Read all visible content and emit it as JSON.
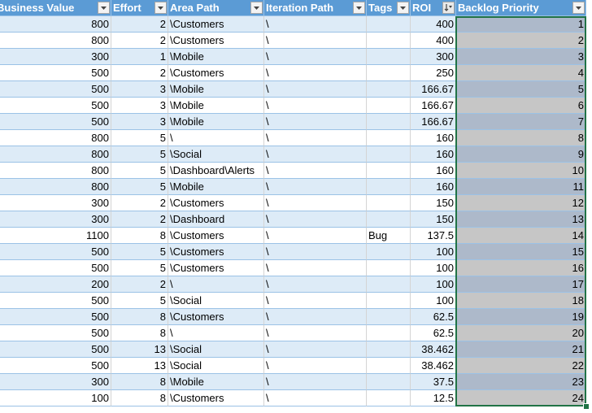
{
  "columns": [
    {
      "id": "business_value",
      "label": "Business Value",
      "align": "num"
    },
    {
      "id": "effort",
      "label": "Effort",
      "align": "num"
    },
    {
      "id": "area_path",
      "label": "Area Path",
      "align": "txt"
    },
    {
      "id": "iteration_path",
      "label": "Iteration Path",
      "align": "txt"
    },
    {
      "id": "tags",
      "label": "Tags",
      "align": "txt"
    },
    {
      "id": "roi",
      "label": "ROI",
      "align": "num",
      "sorted": "descending"
    },
    {
      "id": "backlog_priority",
      "label": "Backlog Priority",
      "align": "num",
      "selected": true
    }
  ],
  "rows": [
    {
      "business_value": "800",
      "effort": "2",
      "area_path": "\\Customers",
      "iteration_path": "\\",
      "tags": "",
      "roi": "400",
      "backlog_priority": "1"
    },
    {
      "business_value": "800",
      "effort": "2",
      "area_path": "\\Customers",
      "iteration_path": "\\",
      "tags": "",
      "roi": "400",
      "backlog_priority": "2"
    },
    {
      "business_value": "300",
      "effort": "1",
      "area_path": "\\Mobile",
      "iteration_path": "\\",
      "tags": "",
      "roi": "300",
      "backlog_priority": "3"
    },
    {
      "business_value": "500",
      "effort": "2",
      "area_path": "\\Customers",
      "iteration_path": "\\",
      "tags": "",
      "roi": "250",
      "backlog_priority": "4"
    },
    {
      "business_value": "500",
      "effort": "3",
      "area_path": "\\Mobile",
      "iteration_path": "\\",
      "tags": "",
      "roi": "166.67",
      "backlog_priority": "5"
    },
    {
      "business_value": "500",
      "effort": "3",
      "area_path": "\\Mobile",
      "iteration_path": "\\",
      "tags": "",
      "roi": "166.67",
      "backlog_priority": "6"
    },
    {
      "business_value": "500",
      "effort": "3",
      "area_path": "\\Mobile",
      "iteration_path": "\\",
      "tags": "",
      "roi": "166.67",
      "backlog_priority": "7"
    },
    {
      "business_value": "800",
      "effort": "5",
      "area_path": "\\",
      "iteration_path": "\\",
      "tags": "",
      "roi": "160",
      "backlog_priority": "8"
    },
    {
      "business_value": "800",
      "effort": "5",
      "area_path": "\\Social",
      "iteration_path": "\\",
      "tags": "",
      "roi": "160",
      "backlog_priority": "9"
    },
    {
      "business_value": "800",
      "effort": "5",
      "area_path": "\\Dashboard\\Alerts",
      "iteration_path": "\\",
      "tags": "",
      "roi": "160",
      "backlog_priority": "10"
    },
    {
      "business_value": "800",
      "effort": "5",
      "area_path": "\\Mobile",
      "iteration_path": "\\",
      "tags": "",
      "roi": "160",
      "backlog_priority": "11"
    },
    {
      "business_value": "300",
      "effort": "2",
      "area_path": "\\Customers",
      "iteration_path": "\\",
      "tags": "",
      "roi": "150",
      "backlog_priority": "12"
    },
    {
      "business_value": "300",
      "effort": "2",
      "area_path": "\\Dashboard",
      "iteration_path": "\\",
      "tags": "",
      "roi": "150",
      "backlog_priority": "13"
    },
    {
      "business_value": "1100",
      "effort": "8",
      "area_path": "\\Customers",
      "iteration_path": "\\",
      "tags": "Bug",
      "roi": "137.5",
      "backlog_priority": "14"
    },
    {
      "business_value": "500",
      "effort": "5",
      "area_path": "\\Customers",
      "iteration_path": "\\",
      "tags": "",
      "roi": "100",
      "backlog_priority": "15"
    },
    {
      "business_value": "500",
      "effort": "5",
      "area_path": "\\Customers",
      "iteration_path": "\\",
      "tags": "",
      "roi": "100",
      "backlog_priority": "16"
    },
    {
      "business_value": "200",
      "effort": "2",
      "area_path": "\\",
      "iteration_path": "\\",
      "tags": "",
      "roi": "100",
      "backlog_priority": "17"
    },
    {
      "business_value": "500",
      "effort": "5",
      "area_path": "\\Social",
      "iteration_path": "\\",
      "tags": "",
      "roi": "100",
      "backlog_priority": "18"
    },
    {
      "business_value": "500",
      "effort": "8",
      "area_path": "\\Customers",
      "iteration_path": "\\",
      "tags": "",
      "roi": "62.5",
      "backlog_priority": "19"
    },
    {
      "business_value": "500",
      "effort": "8",
      "area_path": "\\",
      "iteration_path": "\\",
      "tags": "",
      "roi": "62.5",
      "backlog_priority": "20"
    },
    {
      "business_value": "500",
      "effort": "13",
      "area_path": "\\Social",
      "iteration_path": "\\",
      "tags": "",
      "roi": "38.462",
      "backlog_priority": "21"
    },
    {
      "business_value": "500",
      "effort": "13",
      "area_path": "\\Social",
      "iteration_path": "\\",
      "tags": "",
      "roi": "38.462",
      "backlog_priority": "22"
    },
    {
      "business_value": "300",
      "effort": "8",
      "area_path": "\\Mobile",
      "iteration_path": "\\",
      "tags": "",
      "roi": "37.5",
      "backlog_priority": "23"
    },
    {
      "business_value": "100",
      "effort": "8",
      "area_path": "\\Customers",
      "iteration_path": "\\",
      "tags": "",
      "roi": "12.5",
      "backlog_priority": "24"
    }
  ],
  "colors": {
    "header_bg": "#5b9bd5",
    "band_bg": "#ddebf7",
    "selection_border": "#217346",
    "selected_fill": "#c6c6c6",
    "selected_band_fill": "#adb9ca"
  },
  "icons": {
    "filter": "dropdown-arrow-icon",
    "sort": "sort-descending-icon"
  }
}
